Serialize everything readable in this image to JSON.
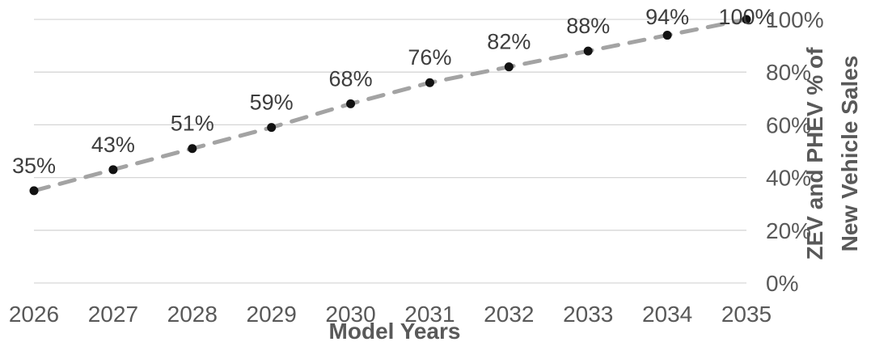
{
  "chart_data": {
    "type": "line",
    "title": "",
    "xlabel": "Model Years",
    "ylabel": "ZEV and PHEV % of New Vehicle Sales",
    "ylabel_lines": [
      "ZEV and PHEV % of",
      "New Vehicle Sales"
    ],
    "categories": [
      "2026",
      "2027",
      "2028",
      "2029",
      "2030",
      "2031",
      "2032",
      "2033",
      "2034",
      "2035"
    ],
    "values": [
      35,
      43,
      51,
      59,
      68,
      76,
      82,
      88,
      94,
      100
    ],
    "data_labels": [
      "35%",
      "43%",
      "51%",
      "59%",
      "68%",
      "76%",
      "82%",
      "88%",
      "94%",
      "100%"
    ],
    "y_ticks": [
      {
        "value": 0,
        "label": "0%"
      },
      {
        "value": 20,
        "label": "20%"
      },
      {
        "value": 40,
        "label": "40%"
      },
      {
        "value": 60,
        "label": "60%"
      },
      {
        "value": 80,
        "label": "80%"
      },
      {
        "value": 100,
        "label": "100%"
      }
    ],
    "ylim": [
      0,
      100
    ],
    "grid": true,
    "legend": "none",
    "y_axis_side": "right",
    "line_style": "dashed",
    "marker": "circle"
  },
  "colors": {
    "background": "#ffffff",
    "gridline": "#d6d6d6",
    "line": "#a3a3a3",
    "marker": "#121212",
    "data_label": "#3d3d3d",
    "tick_label": "#595959",
    "axis_title": "#595959"
  }
}
